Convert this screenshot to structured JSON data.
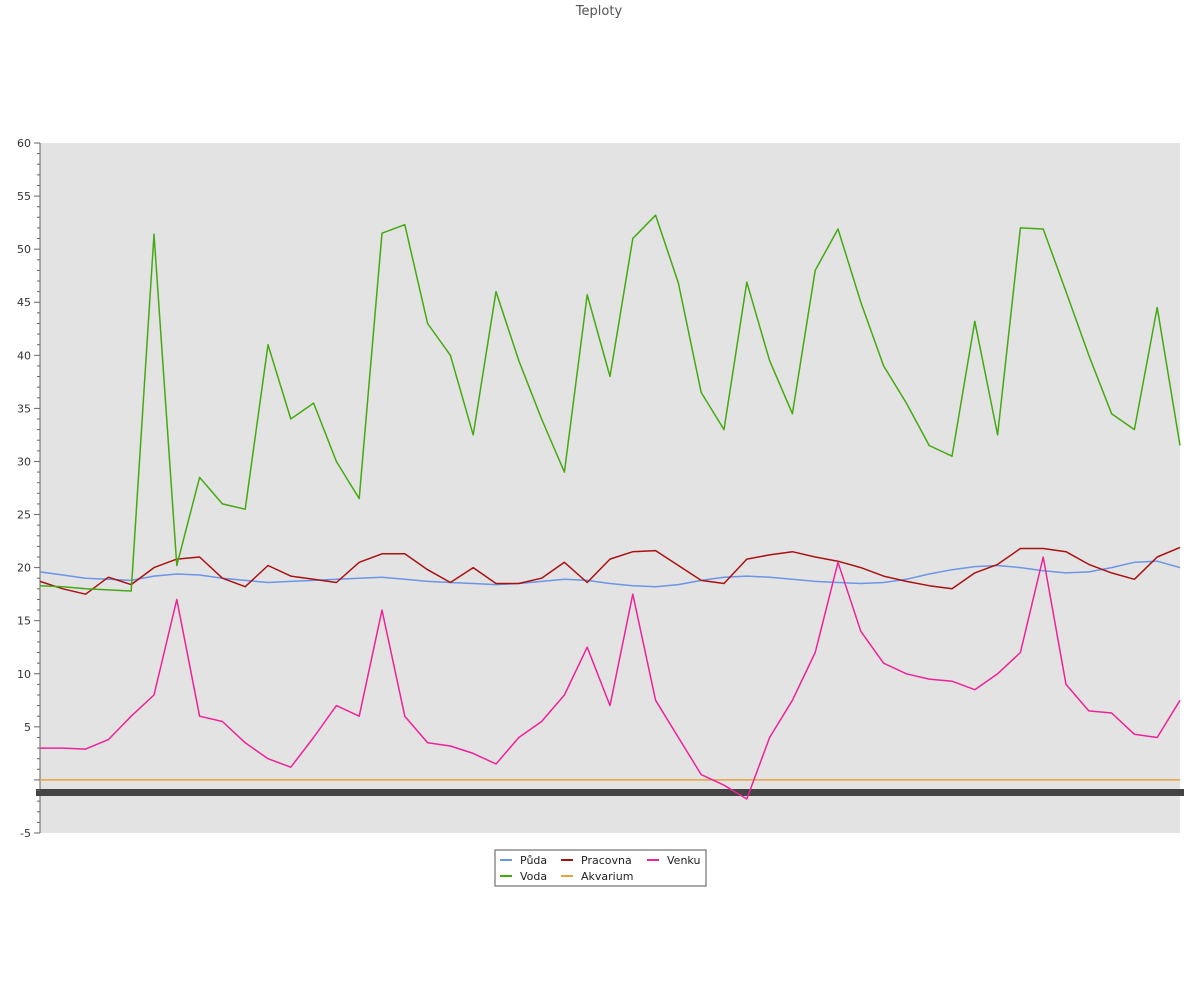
{
  "chart_data": {
    "type": "line",
    "title": "Teploty",
    "xlabel": "",
    "ylabel": "",
    "ylim": [
      -5,
      60
    ],
    "yticks": [
      -5,
      5,
      10,
      15,
      20,
      25,
      30,
      35,
      40,
      45,
      50,
      55,
      60
    ],
    "x_tick_labels_note": "",
    "grid": false,
    "legend_position": "bottom-center",
    "x": [
      0,
      2,
      4,
      6,
      8,
      10,
      12,
      14,
      16,
      18,
      20,
      22,
      24,
      26,
      28,
      30,
      32,
      34,
      36,
      38,
      40,
      42,
      44,
      46,
      48,
      50,
      52,
      54,
      56,
      58,
      60,
      62,
      64,
      66,
      68,
      70,
      72,
      74,
      76,
      78,
      80,
      82,
      84,
      86,
      88,
      90,
      92,
      94,
      96,
      98,
      100
    ],
    "series": [
      {
        "name": "Půda",
        "color": "#6b95e6",
        "values": [
          19.6,
          19.3,
          19.0,
          18.9,
          18.8,
          19.2,
          19.4,
          19.3,
          19.0,
          18.8,
          18.6,
          18.7,
          18.8,
          18.9,
          19.0,
          19.1,
          18.9,
          18.7,
          18.6,
          18.5,
          18.4,
          18.5,
          18.7,
          18.9,
          18.8,
          18.5,
          18.3,
          18.2,
          18.4,
          18.8,
          19.1,
          19.2,
          19.1,
          18.9,
          18.7,
          18.6,
          18.5,
          18.6,
          18.9,
          19.4,
          19.8,
          20.1,
          20.2,
          20.0,
          19.7,
          19.5,
          19.6,
          20.0,
          20.5,
          20.6,
          20.0
        ]
      },
      {
        "name": "Voda",
        "color": "#44aa11",
        "values": [
          18.3,
          18.2,
          18.0,
          17.9,
          17.8,
          51.4,
          20.2,
          28.5,
          26.0,
          25.5,
          41.0,
          34.0,
          35.5,
          30.0,
          26.5,
          51.5,
          52.3,
          43.0,
          40.0,
          32.5,
          46.0,
          39.5,
          34.0,
          29.0,
          45.7,
          38.0,
          51.0,
          53.2,
          46.8,
          36.5,
          33.0,
          46.9,
          39.5,
          34.5,
          48.0,
          51.9,
          45.0,
          39.0,
          35.5,
          31.5,
          30.5,
          43.2,
          32.5,
          52.0,
          51.9,
          46.0,
          40.0,
          34.5,
          33.0,
          44.5,
          31.5
        ]
      },
      {
        "name": "Pracovna",
        "color": "#aa1111",
        "values": [
          18.7,
          18.0,
          17.5,
          19.1,
          18.4,
          20.0,
          20.8,
          21.0,
          19.0,
          18.2,
          20.2,
          19.2,
          18.9,
          18.6,
          20.5,
          21.3,
          21.3,
          19.8,
          18.6,
          20.0,
          18.5,
          18.5,
          19.0,
          20.5,
          18.6,
          20.8,
          21.5,
          21.6,
          20.2,
          18.8,
          18.5,
          20.8,
          21.2,
          21.5,
          21.0,
          20.6,
          20.0,
          19.2,
          18.7,
          18.3,
          18.0,
          19.5,
          20.3,
          21.8,
          21.8,
          21.5,
          20.3,
          19.5,
          18.9,
          21.0,
          21.9
        ]
      },
      {
        "name": "Akvarium",
        "color": "#e6a23c",
        "values": [
          0.0,
          0.0,
          0.0,
          0.0,
          0.0,
          0.0,
          0.0,
          0.0,
          0.0,
          0.0,
          0.0,
          0.0,
          0.0,
          0.0,
          0.0,
          0.0,
          0.0,
          0.0,
          0.0,
          0.0,
          0.0,
          0.0,
          0.0,
          0.0,
          0.0,
          0.0,
          0.0,
          0.0,
          0.0,
          0.0,
          0.0,
          0.0,
          0.0,
          0.0,
          0.0,
          0.0,
          0.0,
          0.0,
          0.0,
          0.0,
          0.0,
          0.0,
          0.0,
          0.0,
          0.0,
          0.0,
          0.0,
          0.0,
          0.0,
          0.0,
          0.0
        ]
      },
      {
        "name": "Venku",
        "color": "#ee2299",
        "values": [
          3.0,
          3.0,
          2.9,
          3.8,
          6.0,
          8.0,
          17.0,
          6.0,
          5.5,
          3.5,
          2.0,
          1.2,
          4.0,
          7.0,
          6.0,
          16.0,
          6.0,
          3.5,
          3.2,
          2.5,
          1.5,
          4.0,
          5.5,
          8.0,
          12.5,
          7.0,
          17.5,
          7.5,
          4.0,
          0.5,
          -0.5,
          -1.8,
          4.0,
          7.5,
          12.0,
          20.5,
          14.0,
          11.0,
          10.0,
          9.5,
          9.3,
          8.5,
          10.0,
          12.0,
          21.0,
          9.0,
          6.5,
          6.3,
          4.3,
          4.0,
          7.5
        ]
      }
    ],
    "legend_order": [
      "Půda",
      "Pracovna",
      "Venku",
      "Voda",
      "Akvarium"
    ]
  }
}
